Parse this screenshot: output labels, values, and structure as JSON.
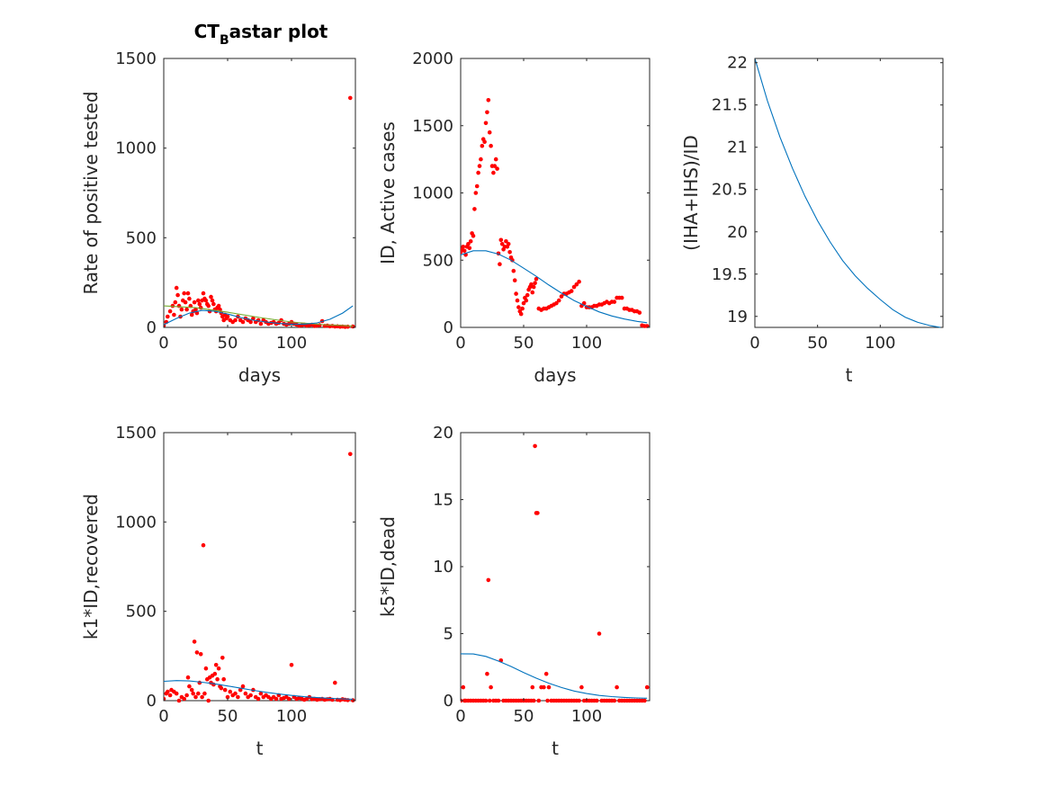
{
  "figure": {
    "colors": {
      "axis": "#262626",
      "data": "#ff0000",
      "fit": "#0072bd",
      "fit2": "#77ac30",
      "background": "#ffffff"
    }
  },
  "chart_data": [
    {
      "id": "p1",
      "type": "scatter",
      "title": "CT",
      "title_sub": "B",
      "title_rest": "astar plot",
      "xlabel": "days",
      "ylabel": "Rate of positive tested",
      "xlim": [
        0,
        150
      ],
      "ylim": [
        0,
        1500
      ],
      "xticks": [
        0,
        50,
        100
      ],
      "yticks": [
        0,
        500,
        1000,
        1500
      ],
      "grid": false,
      "series": [
        {
          "kind": "points",
          "color": "#ff0000",
          "x": [
            0,
            2,
            3,
            5,
            7,
            8,
            9,
            10,
            11,
            12,
            13,
            14,
            15,
            16,
            17,
            18,
            19,
            20,
            21,
            22,
            23,
            24,
            25,
            26,
            27,
            28,
            29,
            30,
            31,
            32,
            33,
            34,
            35,
            36,
            37,
            38,
            39,
            40,
            41,
            42,
            43,
            44,
            45,
            46,
            47,
            48,
            49,
            50,
            52,
            54,
            56,
            58,
            60,
            62,
            64,
            66,
            68,
            70,
            72,
            74,
            76,
            78,
            80,
            82,
            84,
            86,
            88,
            90,
            92,
            94,
            96,
            98,
            100,
            102,
            104,
            106,
            108,
            110,
            112,
            114,
            116,
            118,
            120,
            122,
            124,
            126,
            128,
            130,
            132,
            134,
            136,
            138,
            140,
            142,
            144,
            146,
            148
          ],
          "y": [
            10,
            30,
            60,
            90,
            120,
            70,
            140,
            220,
            180,
            120,
            60,
            100,
            150,
            190,
            140,
            100,
            190,
            160,
            120,
            70,
            90,
            140,
            100,
            80,
            150,
            130,
            110,
            150,
            190,
            160,
            150,
            130,
            120,
            90,
            170,
            150,
            130,
            100,
            90,
            110,
            120,
            100,
            80,
            60,
            40,
            70,
            50,
            60,
            40,
            30,
            40,
            60,
            40,
            30,
            50,
            40,
            30,
            50,
            30,
            40,
            20,
            40,
            30,
            20,
            25,
            30,
            20,
            25,
            40,
            20,
            15,
            20,
            30,
            20,
            15,
            10,
            12,
            15,
            10,
            12,
            15,
            8,
            10,
            12,
            35,
            8,
            10,
            6,
            8,
            5,
            6,
            4,
            5,
            3,
            4,
            1280,
            5
          ]
        },
        {
          "kind": "line",
          "color": "#77ac30",
          "x": [
            0,
            25,
            50,
            75,
            100,
            125,
            148
          ],
          "y": [
            120,
            110,
            85,
            55,
            30,
            15,
            8
          ]
        },
        {
          "kind": "line",
          "color": "#0072bd",
          "x": [
            0,
            10,
            20,
            30,
            40,
            50,
            60,
            70,
            80,
            90,
            100,
            110,
            120,
            130,
            140,
            148
          ],
          "y": [
            15,
            50,
            80,
            95,
            90,
            75,
            55,
            40,
            30,
            22,
            18,
            18,
            25,
            45,
            80,
            120
          ]
        }
      ]
    },
    {
      "id": "p2",
      "type": "scatter",
      "xlabel": "days",
      "ylabel": "ID, Active cases",
      "xlim": [
        0,
        150
      ],
      "ylim": [
        0,
        2000
      ],
      "xticks": [
        0,
        50,
        100
      ],
      "yticks": [
        0,
        500,
        1000,
        1500,
        2000
      ],
      "grid": false,
      "series": [
        {
          "kind": "points",
          "color": "#ff0000",
          "x": [
            0,
            1,
            2,
            3,
            4,
            5,
            6,
            7,
            8,
            9,
            10,
            11,
            12,
            13,
            14,
            15,
            16,
            17,
            18,
            19,
            20,
            21,
            22,
            23,
            24,
            25,
            26,
            27,
            28,
            29,
            30,
            31,
            32,
            33,
            34,
            35,
            36,
            37,
            38,
            39,
            40,
            41,
            42,
            43,
            44,
            45,
            46,
            47,
            48,
            49,
            50,
            51,
            52,
            53,
            54,
            55,
            56,
            57,
            58,
            59,
            60,
            62,
            64,
            66,
            68,
            70,
            72,
            74,
            76,
            78,
            80,
            82,
            84,
            86,
            88,
            90,
            92,
            94,
            96,
            98,
            100,
            102,
            104,
            106,
            108,
            110,
            112,
            114,
            116,
            118,
            120,
            122,
            124,
            126,
            128,
            130,
            132,
            134,
            136,
            138,
            140,
            142,
            144,
            146,
            148
          ],
          "y": [
            560,
            580,
            600,
            570,
            540,
            600,
            620,
            590,
            640,
            700,
            680,
            880,
            1000,
            1050,
            1150,
            1200,
            1250,
            1350,
            1400,
            1380,
            1520,
            1600,
            1690,
            1450,
            1350,
            1200,
            1150,
            1200,
            1250,
            1180,
            550,
            470,
            650,
            620,
            580,
            600,
            640,
            600,
            620,
            560,
            520,
            500,
            420,
            350,
            250,
            200,
            150,
            120,
            100,
            140,
            180,
            220,
            200,
            240,
            280,
            300,
            320,
            260,
            300,
            330,
            360,
            140,
            130,
            140,
            140,
            150,
            160,
            170,
            180,
            200,
            230,
            250,
            250,
            260,
            270,
            300,
            320,
            340,
            160,
            180,
            150,
            150,
            150,
            160,
            160,
            170,
            170,
            180,
            190,
            180,
            190,
            190,
            220,
            220,
            220,
            140,
            140,
            130,
            130,
            120,
            120,
            110,
            15,
            10,
            10
          ]
        },
        {
          "kind": "line",
          "color": "#0072bd",
          "x": [
            0,
            10,
            20,
            30,
            40,
            50,
            60,
            70,
            80,
            90,
            100,
            110,
            120,
            130,
            140,
            148
          ],
          "y": [
            540,
            570,
            570,
            545,
            500,
            440,
            380,
            315,
            255,
            200,
            155,
            115,
            85,
            62,
            45,
            35
          ]
        }
      ]
    },
    {
      "id": "p3",
      "type": "line",
      "xlabel": "t",
      "ylabel": "(IHA+IHS)/ID",
      "xlim": [
        0,
        150
      ],
      "ylim": [
        18.87,
        22.05
      ],
      "xticks": [
        0,
        50,
        100
      ],
      "yticks": [
        19,
        19.5,
        20,
        20.5,
        21,
        21.5,
        22
      ],
      "grid": false,
      "series": [
        {
          "kind": "line",
          "color": "#0072bd",
          "x": [
            0,
            10,
            20,
            30,
            40,
            50,
            60,
            70,
            80,
            90,
            100,
            110,
            120,
            130,
            140,
            148
          ],
          "y": [
            22.05,
            21.55,
            21.12,
            20.75,
            20.42,
            20.13,
            19.88,
            19.66,
            19.48,
            19.33,
            19.2,
            19.08,
            18.99,
            18.93,
            18.89,
            18.87
          ]
        }
      ]
    },
    {
      "id": "p4",
      "type": "scatter",
      "xlabel": "t",
      "ylabel": "k1*ID,recovered",
      "xlim": [
        0,
        150
      ],
      "ylim": [
        0,
        1500
      ],
      "xticks": [
        0,
        50,
        100
      ],
      "yticks": [
        0,
        500,
        1000,
        1500
      ],
      "grid": false,
      "series": [
        {
          "kind": "points",
          "color": "#ff0000",
          "x": [
            0,
            2,
            3,
            5,
            6,
            8,
            10,
            12,
            14,
            16,
            18,
            19,
            20,
            22,
            23,
            24,
            25,
            26,
            27,
            28,
            29,
            30,
            31,
            32,
            33,
            34,
            35,
            36,
            37,
            38,
            39,
            40,
            41,
            42,
            43,
            44,
            45,
            46,
            47,
            48,
            50,
            52,
            54,
            56,
            58,
            60,
            62,
            64,
            66,
            68,
            70,
            72,
            74,
            76,
            78,
            80,
            82,
            84,
            86,
            88,
            90,
            92,
            94,
            96,
            98,
            100,
            102,
            104,
            106,
            108,
            110,
            112,
            114,
            116,
            118,
            120,
            122,
            124,
            126,
            128,
            130,
            132,
            134,
            136,
            138,
            140,
            142,
            144,
            146,
            148
          ],
          "y": [
            10,
            40,
            50,
            30,
            60,
            50,
            40,
            0,
            20,
            10,
            30,
            130,
            80,
            60,
            40,
            330,
            20,
            270,
            40,
            100,
            260,
            20,
            870,
            40,
            180,
            120,
            0,
            130,
            100,
            140,
            90,
            150,
            200,
            120,
            180,
            80,
            70,
            240,
            120,
            60,
            20,
            50,
            30,
            40,
            20,
            60,
            80,
            40,
            20,
            30,
            60,
            20,
            10,
            40,
            20,
            30,
            20,
            10,
            20,
            10,
            30,
            10,
            15,
            20,
            10,
            200,
            20,
            10,
            15,
            10,
            5,
            10,
            20,
            8,
            10,
            5,
            8,
            10,
            5,
            8,
            10,
            5,
            100,
            5,
            3,
            8,
            5,
            3,
            1380,
            2
          ]
        },
        {
          "kind": "line",
          "color": "#0072bd",
          "x": [
            0,
            10,
            20,
            30,
            40,
            50,
            60,
            70,
            80,
            90,
            100,
            110,
            120,
            130,
            140,
            148
          ],
          "y": [
            108,
            112,
            110,
            103,
            94,
            82,
            70,
            58,
            47,
            37,
            29,
            22,
            17,
            13,
            10,
            8
          ]
        }
      ]
    },
    {
      "id": "p5",
      "type": "scatter",
      "xlabel": "t",
      "ylabel": "k5*ID,dead",
      "xlim": [
        0,
        150
      ],
      "ylim": [
        0,
        20
      ],
      "xticks": [
        0,
        50,
        100
      ],
      "yticks": [
        0,
        5,
        10,
        15,
        20
      ],
      "grid": false,
      "series": [
        {
          "kind": "points",
          "color": "#ff0000",
          "x": [
            0,
            2,
            3,
            4,
            6,
            8,
            10,
            12,
            14,
            16,
            18,
            20,
            21,
            22,
            23,
            24,
            26,
            28,
            30,
            32,
            34,
            36,
            38,
            40,
            42,
            44,
            46,
            48,
            50,
            52,
            54,
            56,
            57,
            58,
            59,
            60,
            61,
            62,
            64,
            66,
            68,
            69,
            70,
            72,
            74,
            76,
            78,
            80,
            82,
            84,
            86,
            88,
            90,
            92,
            94,
            96,
            98,
            100,
            102,
            104,
            106,
            108,
            110,
            112,
            114,
            116,
            118,
            120,
            122,
            124,
            126,
            128,
            130,
            132,
            134,
            136,
            138,
            140,
            142,
            144,
            146,
            148
          ],
          "y": [
            0,
            1,
            0,
            0,
            0,
            0,
            0,
            0,
            0,
            0,
            0,
            0,
            2,
            9,
            0,
            1,
            0,
            0,
            0,
            3,
            0,
            0,
            0,
            0,
            0,
            0,
            0,
            0,
            0,
            0,
            0,
            0,
            1,
            0,
            19,
            14,
            14,
            0,
            1,
            1,
            2,
            0,
            1,
            0,
            0,
            0,
            0,
            0,
            0,
            0,
            0,
            0,
            0,
            0,
            0,
            1,
            0,
            0,
            0,
            0,
            0,
            0,
            5,
            0,
            0,
            0,
            0,
            0,
            0,
            1,
            0,
            0,
            0,
            0,
            0,
            0,
            0,
            0,
            0,
            0,
            0,
            1
          ]
        },
        {
          "kind": "line",
          "color": "#0072bd",
          "x": [
            0,
            10,
            20,
            30,
            40,
            50,
            60,
            70,
            80,
            90,
            100,
            110,
            120,
            130,
            140,
            148
          ],
          "y": [
            3.5,
            3.48,
            3.3,
            2.95,
            2.55,
            2.1,
            1.68,
            1.3,
            0.98,
            0.72,
            0.53,
            0.39,
            0.3,
            0.24,
            0.2,
            0.18
          ]
        }
      ]
    }
  ]
}
